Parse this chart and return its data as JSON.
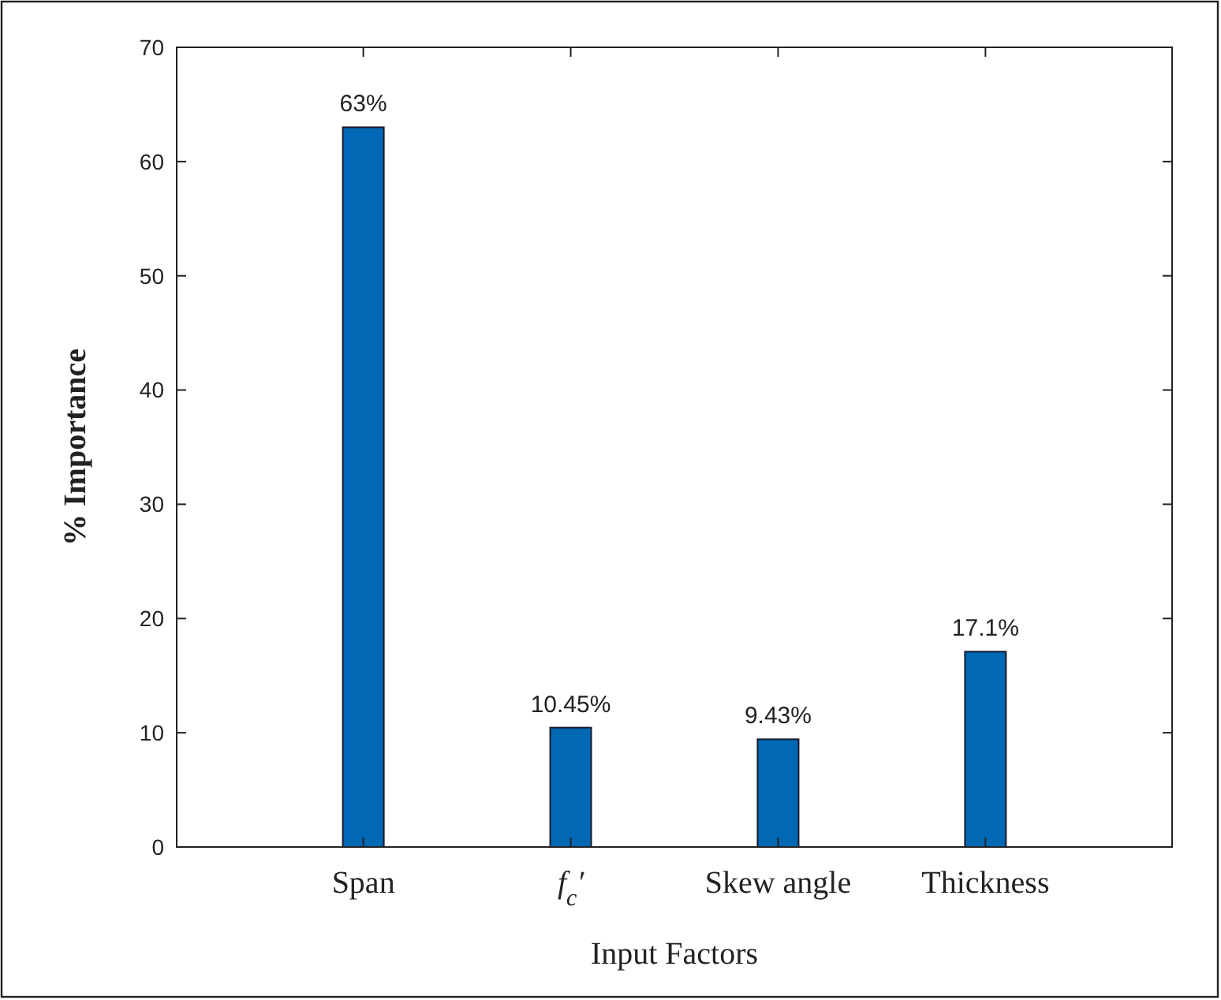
{
  "chart_data": {
    "type": "bar",
    "xlabel": "Input Factors",
    "ylabel": "% Importance",
    "categories": [
      "Span",
      "f$_{c}$′",
      "Skew angle",
      "Thickness"
    ],
    "values": [
      63,
      10.45,
      9.43,
      17.1
    ],
    "value_labels": [
      "63%",
      "10.45%",
      "9.43%",
      "17.1%"
    ],
    "color": "#0068b4",
    "ylim": [
      0,
      70
    ],
    "yticks": [
      0,
      10,
      20,
      30,
      40,
      50,
      60,
      70
    ],
    "grid": false
  }
}
